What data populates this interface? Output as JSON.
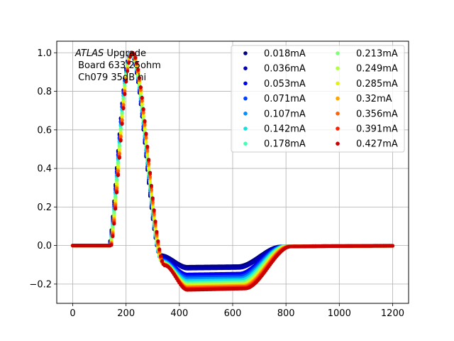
{
  "chart_data": {
    "type": "scatter",
    "title": "",
    "xlabel": "",
    "ylabel": "",
    "xlim": [
      -60,
      1260
    ],
    "ylim": [
      -0.3,
      1.06
    ],
    "xticks": [
      0,
      200,
      400,
      600,
      800,
      1000,
      1200
    ],
    "yticks": [
      -0.2,
      0.0,
      0.2,
      0.4,
      0.6,
      0.8,
      1.0
    ],
    "xtick_labels": [
      "0",
      "200",
      "400",
      "600",
      "800",
      "1000",
      "1200"
    ],
    "ytick_labels": [
      "−0.2",
      "0.0",
      "0.2",
      "0.4",
      "0.6",
      "0.8",
      "1.0"
    ],
    "grid": true,
    "legend_position": "top-right",
    "legend_columns": 2,
    "annotation": {
      "italic": "ATLAS",
      "line1_rest": " Upgrade",
      "line2": " Board 633 25ohm",
      "line3": " Ch079 35dB hi"
    },
    "series": [
      {
        "name": "0.018mA",
        "color": "#00007f",
        "undershoot": -0.11,
        "peak_x": 218
      },
      {
        "name": "0.036mA",
        "color": "#0000b2",
        "undershoot": -0.12,
        "peak_x": 218
      },
      {
        "name": "0.053mA",
        "color": "#0000f1",
        "undershoot": -0.15,
        "peak_x": 219
      },
      {
        "name": "0.071mA",
        "color": "#0040ff",
        "undershoot": -0.165,
        "peak_x": 219
      },
      {
        "name": "0.107mA",
        "color": "#0090ff",
        "undershoot": -0.175,
        "peak_x": 220
      },
      {
        "name": "0.142mA",
        "color": "#15e0e1",
        "undershoot": -0.185,
        "peak_x": 220
      },
      {
        "name": "0.178mA",
        "color": "#45ffb1",
        "undershoot": -0.195,
        "peak_x": 221
      },
      {
        "name": "0.213mA",
        "color": "#7dff7a",
        "undershoot": -0.2,
        "peak_x": 221
      },
      {
        "name": "0.249mA",
        "color": "#b1ff45",
        "undershoot": -0.205,
        "peak_x": 222
      },
      {
        "name": "0.285mA",
        "color": "#e6f207",
        "undershoot": -0.21,
        "peak_x": 222
      },
      {
        "name": "0.32mA",
        "color": "#ffa700",
        "undershoot": -0.215,
        "peak_x": 223
      },
      {
        "name": "0.356mA",
        "color": "#ff6200",
        "undershoot": -0.22,
        "peak_x": 223
      },
      {
        "name": "0.391mA",
        "color": "#ff2000",
        "undershoot": -0.225,
        "peak_x": 224
      },
      {
        "name": "0.427mA",
        "color": "#c80000",
        "undershoot": -0.23,
        "peak_x": 224
      }
    ],
    "pulse_shape": {
      "x_start": 0,
      "x_end": 1200,
      "step": 5,
      "baseline": 0.0,
      "rise_start": 140,
      "peak": 1.0,
      "fall_end": 330,
      "recover_start": 620,
      "recover_end": 780
    }
  }
}
